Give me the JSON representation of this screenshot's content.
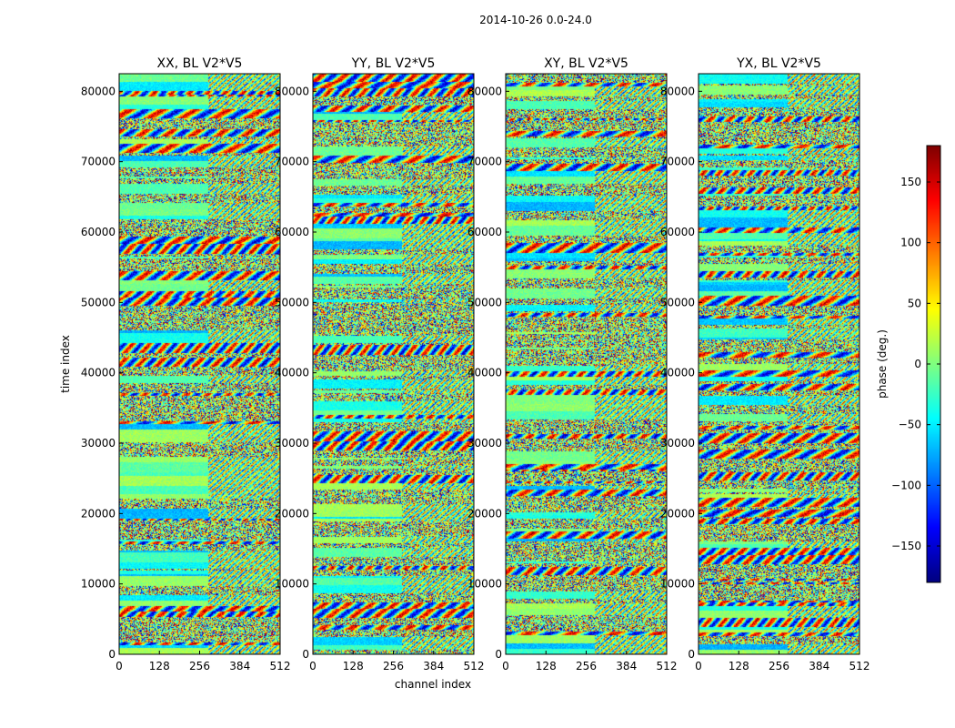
{
  "figure": {
    "suptitle": "2014-10-26 0.0-24.0"
  },
  "chart_data": {
    "type": "heatmap",
    "colormap": "jet",
    "x_label": "channel index",
    "y_label": "time index",
    "xlim": [
      0,
      512
    ],
    "ylim": [
      0,
      82500
    ],
    "x_ticks": [
      0,
      128,
      256,
      384,
      512
    ],
    "y_ticks": [
      0,
      10000,
      20000,
      30000,
      40000,
      50000,
      60000,
      70000,
      80000
    ],
    "panels": [
      {
        "title": "XX, BL V2*V5"
      },
      {
        "title": "YY, BL V2*V5"
      },
      {
        "title": "XY, BL V2*V5"
      },
      {
        "title": "YX, BL V2*V5"
      }
    ],
    "colorbar": {
      "label": "phase (deg.)",
      "range": [
        -180,
        180
      ],
      "ticks": [
        -150,
        -100,
        -50,
        0,
        50,
        100,
        150
      ]
    }
  }
}
